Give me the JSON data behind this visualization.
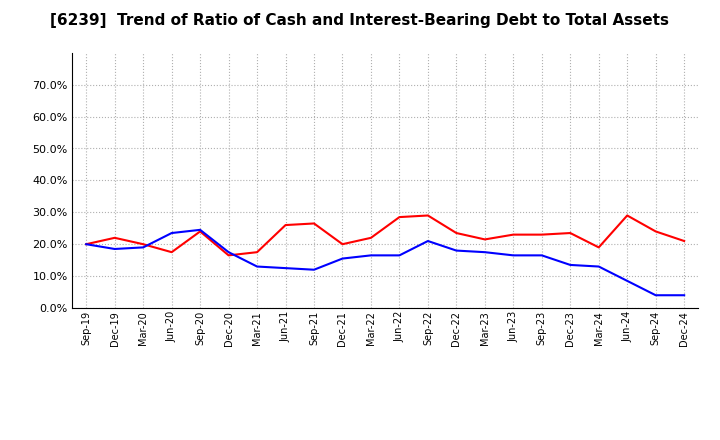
{
  "title": "[6239]  Trend of Ratio of Cash and Interest-Bearing Debt to Total Assets",
  "x_labels": [
    "Sep-19",
    "Dec-19",
    "Mar-20",
    "Jun-20",
    "Sep-20",
    "Dec-20",
    "Mar-21",
    "Jun-21",
    "Sep-21",
    "Dec-21",
    "Mar-22",
    "Jun-22",
    "Sep-22",
    "Dec-22",
    "Mar-23",
    "Jun-23",
    "Sep-23",
    "Dec-23",
    "Mar-24",
    "Jun-24",
    "Sep-24",
    "Dec-24"
  ],
  "cash": [
    0.2,
    0.22,
    0.2,
    0.175,
    0.24,
    0.165,
    0.175,
    0.26,
    0.265,
    0.2,
    0.22,
    0.285,
    0.29,
    0.235,
    0.215,
    0.23,
    0.23,
    0.235,
    0.19,
    0.29,
    0.24,
    0.21
  ],
  "ibd": [
    0.2,
    0.185,
    0.19,
    0.235,
    0.245,
    0.175,
    0.13,
    0.125,
    0.12,
    0.155,
    0.165,
    0.165,
    0.21,
    0.18,
    0.175,
    0.165,
    0.165,
    0.135,
    0.13,
    0.085,
    0.04,
    0.04
  ],
  "cash_color": "#ff0000",
  "ibd_color": "#0000ff",
  "ylim": [
    0.0,
    0.8
  ],
  "yticks": [
    0.0,
    0.1,
    0.2,
    0.3,
    0.4,
    0.5,
    0.6,
    0.7
  ],
  "background_color": "#ffffff",
  "grid_color": "#b0b0b0",
  "title_fontsize": 11,
  "line_width": 1.5
}
